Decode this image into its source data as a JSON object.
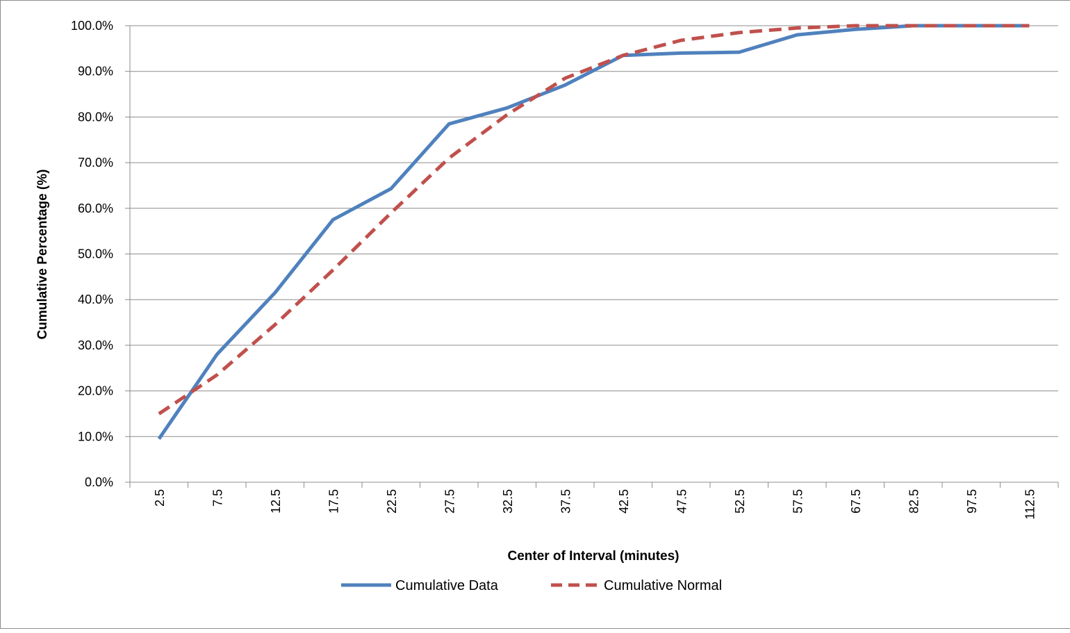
{
  "chart_data": {
    "type": "line",
    "title": "",
    "xlabel": "Center of Interval (minutes)",
    "ylabel": "Cumulative Percentage (%)",
    "categories": [
      "2.5",
      "7.5",
      "12.5",
      "17.5",
      "22.5",
      "27.5",
      "32.5",
      "37.5",
      "42.5",
      "47.5",
      "52.5",
      "57.5",
      "67.5",
      "82.5",
      "97.5",
      "112.5"
    ],
    "y_ticks": [
      "0.0%",
      "10.0%",
      "20.0%",
      "30.0%",
      "40.0%",
      "50.0%",
      "60.0%",
      "70.0%",
      "80.0%",
      "90.0%",
      "100.0%"
    ],
    "ylim": [
      0,
      100
    ],
    "grid": true,
    "legend_position": "bottom",
    "series": [
      {
        "name": "Cumulative Data",
        "color": "#4f81bd",
        "style": "solid",
        "values": [
          9.5,
          28.0,
          41.5,
          57.5,
          64.3,
          78.5,
          82.0,
          87.0,
          93.5,
          94.0,
          94.2,
          98.0,
          99.2,
          100.0,
          100.0,
          100.0
        ]
      },
      {
        "name": "Cumulative Normal",
        "color": "#c0504d",
        "style": "dashed",
        "values": [
          15.0,
          23.5,
          34.5,
          46.5,
          59.0,
          71.0,
          80.5,
          88.5,
          93.5,
          96.8,
          98.5,
          99.5,
          100.0,
          100.0,
          100.0,
          100.0
        ]
      }
    ]
  }
}
